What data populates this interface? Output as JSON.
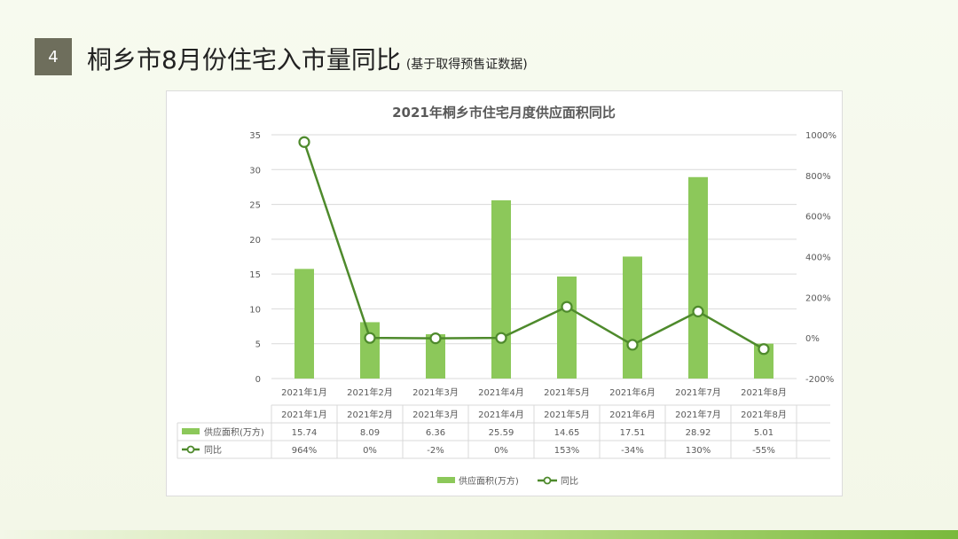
{
  "slide": {
    "number": "4",
    "title": "桐乡市8月份住宅入市量同比",
    "subtitle": "(基于取得预售证数据)"
  },
  "colors": {
    "bar": "#8cc85a",
    "line": "#4e8a2c",
    "grid": "#d9d9d9",
    "text": "#595959"
  },
  "chart_data": {
    "type": "bar+line",
    "title": "2021年桐乡市住宅月度供应面积同比",
    "categories": [
      "2021年1月",
      "2021年2月",
      "2021年3月",
      "2021年4月",
      "2021年5月",
      "2021年6月",
      "2021年7月",
      "2021年8月"
    ],
    "series": [
      {
        "name": "供应面积(万方)",
        "type": "bar",
        "axis": "left",
        "values": [
          15.74,
          8.09,
          6.36,
          25.59,
          14.65,
          17.51,
          28.92,
          5.01
        ]
      },
      {
        "name": "同比",
        "type": "line",
        "axis": "right",
        "values": [
          964,
          0,
          -2,
          0,
          153,
          -34,
          130,
          -55
        ]
      }
    ],
    "y_left": {
      "min": 0,
      "max": 35,
      "ticks": [
        "0",
        "5",
        "10",
        "15",
        "20",
        "25",
        "30",
        "35"
      ]
    },
    "y_right": {
      "min": -200,
      "max": 1000,
      "ticks": [
        "-200%",
        "0%",
        "200%",
        "400%",
        "600%",
        "800%",
        "1000%"
      ]
    },
    "table_rows": [
      {
        "label": "供应面积(万方)",
        "cells": [
          "15.74",
          "8.09",
          "6.36",
          "25.59",
          "14.65",
          "17.51",
          "28.92",
          "5.01"
        ]
      },
      {
        "label": "同比",
        "cells": [
          "964%",
          "0%",
          "-2%",
          "0%",
          "153%",
          "-34%",
          "130%",
          "-55%"
        ]
      }
    ],
    "legend_position": "bottom",
    "legend": [
      "供应面积(万方)",
      "同比"
    ],
    "grid": true
  }
}
